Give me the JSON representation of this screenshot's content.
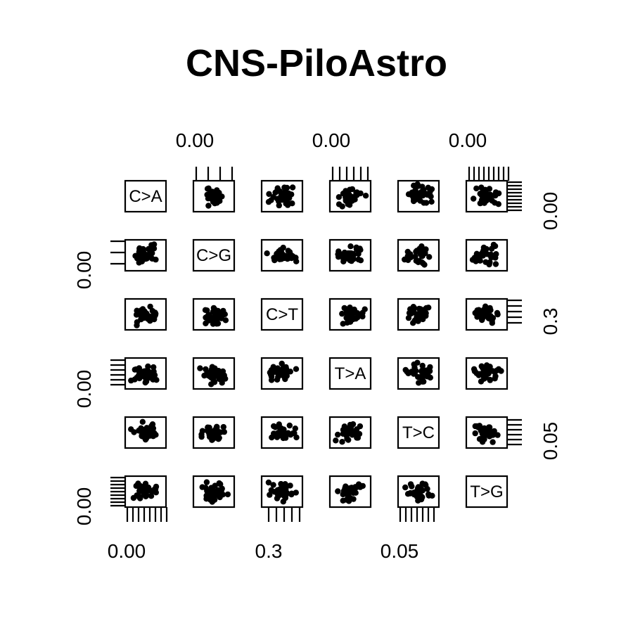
{
  "chart_data": {
    "type": "scatter",
    "subtype": "scatterplot-matrix",
    "title": "CNS-PiloAstro",
    "variables": [
      "C>A",
      "C>G",
      "C>T",
      "T>A",
      "T>C",
      "T>G"
    ],
    "axis_labels": {
      "top": [
        "0.00",
        "0.00",
        "0.00"
      ],
      "bottom": [
        "0.00",
        "0.3",
        "0.05"
      ],
      "left": [
        "0.00",
        "0.00",
        "0.00"
      ],
      "right": [
        "0.00",
        "0.3",
        "0.05"
      ]
    },
    "points_per_panel": 36,
    "marker": "filled-circle"
  }
}
